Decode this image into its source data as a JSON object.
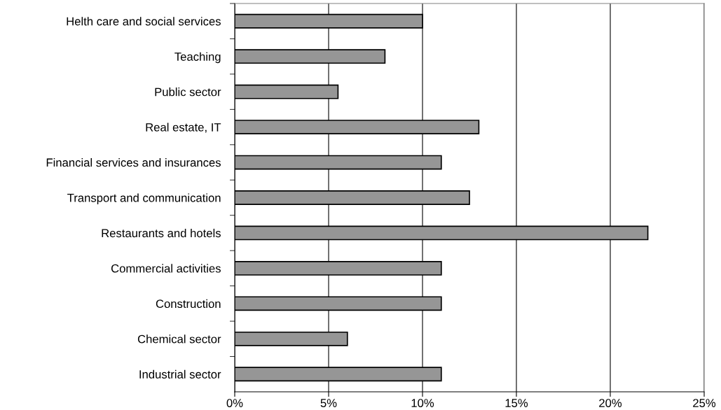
{
  "chart_data": {
    "type": "bar",
    "orientation": "horizontal",
    "categories": [
      "Helth care and social services",
      "Teaching",
      "Public sector",
      "Real estate, IT",
      "Financial services and insurances",
      "Transport and communication",
      "Restaurants and hotels",
      "Commercial activities",
      "Construction",
      "Chemical sector",
      "Industrial sector"
    ],
    "values": [
      10,
      8,
      5.5,
      13,
      11,
      12.5,
      22,
      11,
      11,
      6,
      11
    ],
    "color": "#969696",
    "xlim": [
      0,
      25
    ],
    "xticks": [
      {
        "value": 0,
        "label": "0%"
      },
      {
        "value": 5,
        "label": "5%"
      },
      {
        "value": 10,
        "label": "10%"
      },
      {
        "value": 15,
        "label": "15%"
      },
      {
        "value": 20,
        "label": "20%"
      },
      {
        "value": 25,
        "label": "25%"
      }
    ],
    "grid": "x",
    "legend": false
  }
}
